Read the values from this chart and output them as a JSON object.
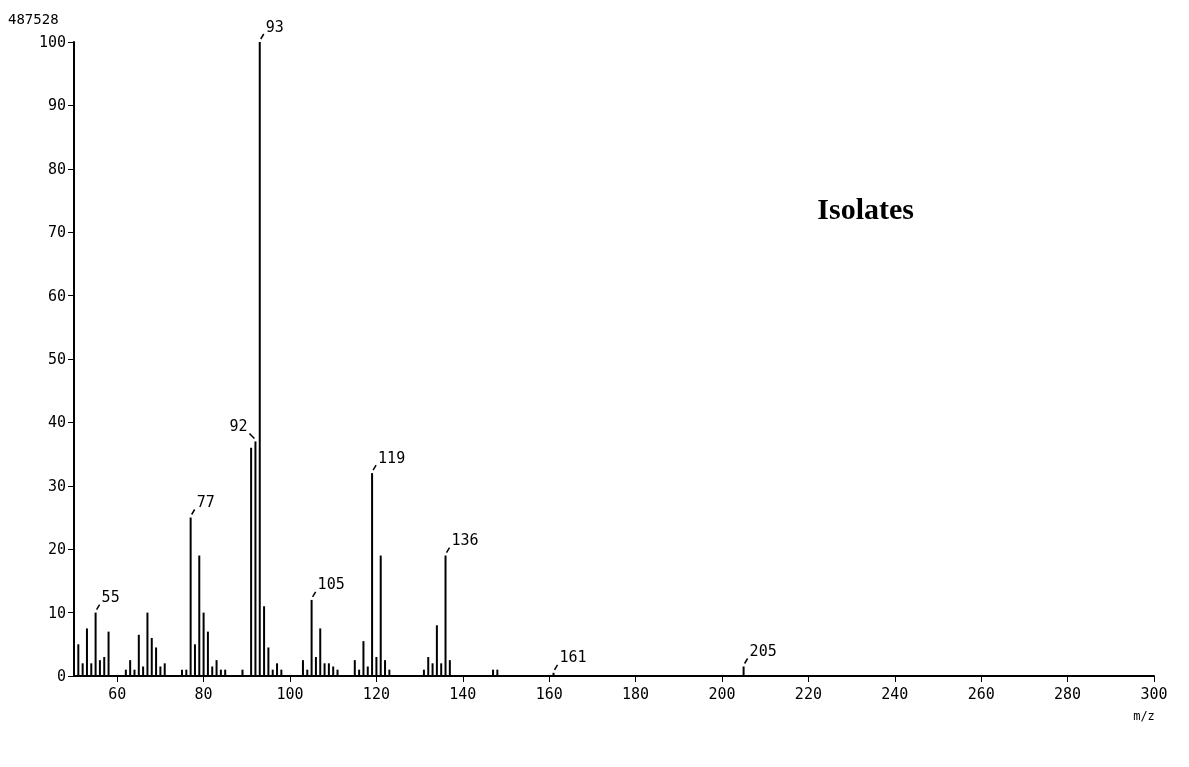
{
  "chart_data": {
    "type": "bar",
    "title": "Isolates",
    "xlabel": "m/z",
    "annotations": [
      "487528",
      {
        "text": "55",
        "x": 55,
        "y": 10
      },
      {
        "text": "77",
        "x": 77,
        "y": 25
      },
      {
        "text": "92",
        "x": 92,
        "y": 37
      },
      {
        "text": "93",
        "x": 93,
        "y": 100
      },
      {
        "text": "105",
        "x": 105,
        "y": 12
      },
      {
        "text": "119",
        "x": 119,
        "y": 32
      },
      {
        "text": "136",
        "x": 136,
        "y": 19
      },
      {
        "text": "161",
        "x": 161,
        "y": 0.5
      },
      {
        "text": "205",
        "x": 205,
        "y": 1.5
      }
    ],
    "x": [
      51,
      52,
      53,
      54,
      55,
      56,
      57,
      58,
      62,
      63,
      64,
      65,
      66,
      67,
      68,
      69,
      70,
      71,
      75,
      76,
      77,
      78,
      79,
      80,
      81,
      82,
      83,
      84,
      85,
      89,
      91,
      92,
      93,
      94,
      95,
      96,
      97,
      98,
      103,
      104,
      105,
      106,
      107,
      108,
      109,
      110,
      111,
      115,
      116,
      117,
      118,
      119,
      120,
      121,
      122,
      123,
      131,
      132,
      133,
      134,
      135,
      136,
      137,
      147,
      148,
      161,
      205
    ],
    "values": [
      5,
      2,
      7.5,
      2,
      10,
      2.5,
      3,
      7,
      1,
      2.5,
      1,
      6.5,
      1.5,
      10,
      6,
      4.5,
      1.5,
      2,
      1,
      1,
      25,
      5,
      19,
      10,
      7,
      1.5,
      2.5,
      1,
      1,
      1,
      36,
      37,
      100,
      11,
      4.5,
      1,
      2,
      1,
      2.5,
      1,
      12,
      3,
      7.5,
      2,
      2,
      1.5,
      1,
      2.5,
      1,
      5.5,
      1.5,
      32,
      3,
      19,
      2.5,
      1,
      1,
      3,
      2,
      8,
      2,
      19,
      2.5,
      1,
      1,
      0.5,
      1.5
    ],
    "color": "#000000",
    "xlim": [
      50,
      300
    ],
    "xticks": [
      60,
      80,
      100,
      120,
      140,
      160,
      180,
      200,
      220,
      240,
      260,
      280,
      300
    ],
    "ylim": [
      0,
      100
    ],
    "yticks": [
      0,
      10,
      20,
      30,
      40,
      50,
      60,
      70,
      80,
      90,
      100
    ],
    "grid": false
  }
}
